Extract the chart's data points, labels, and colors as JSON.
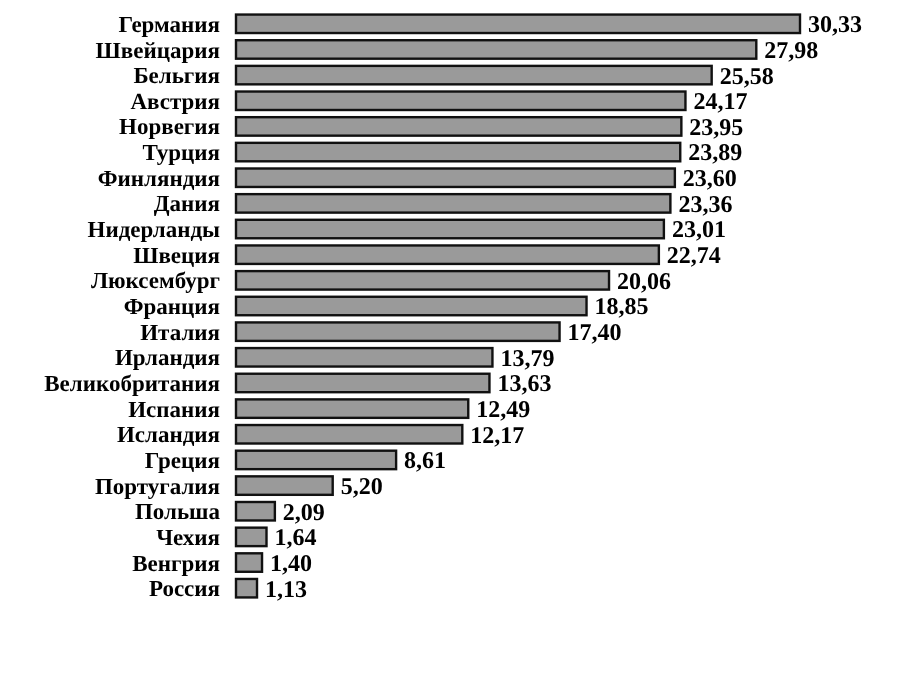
{
  "chart_data": {
    "type": "bar",
    "orientation": "horizontal",
    "color": "#9a9a9a",
    "categories": [
      "Германия",
      "Швейцария",
      "Бельгия",
      "Австрия",
      "Норвегия",
      "Турция",
      "Финляндия",
      "Дания",
      "Нидерланды",
      "Швеция",
      "Люксембург",
      "Франция",
      "Италия",
      "Ирландия",
      "Великобритания",
      "Испания",
      "Исландия",
      "Греция",
      "Португалия",
      "Польша",
      "Чехия",
      "Венгрия",
      "Россия"
    ],
    "values": [
      30.33,
      27.98,
      25.58,
      24.17,
      23.95,
      23.89,
      23.6,
      23.36,
      23.01,
      22.74,
      20.06,
      18.85,
      17.4,
      13.79,
      13.63,
      12.49,
      12.17,
      8.61,
      5.2,
      2.09,
      1.64,
      1.4,
      1.13
    ],
    "value_labels": [
      "30,33",
      "27,98",
      "25,58",
      "24,17",
      "23,95",
      "23,89",
      "23,60",
      "23,36",
      "23,01",
      "22,74",
      "20,06",
      "18,85",
      "17,40",
      "13,79",
      "13,63",
      "12,49",
      "12,17",
      "8,61",
      "5,20",
      "2,09",
      "1,64",
      "1,40",
      "1,13"
    ]
  }
}
